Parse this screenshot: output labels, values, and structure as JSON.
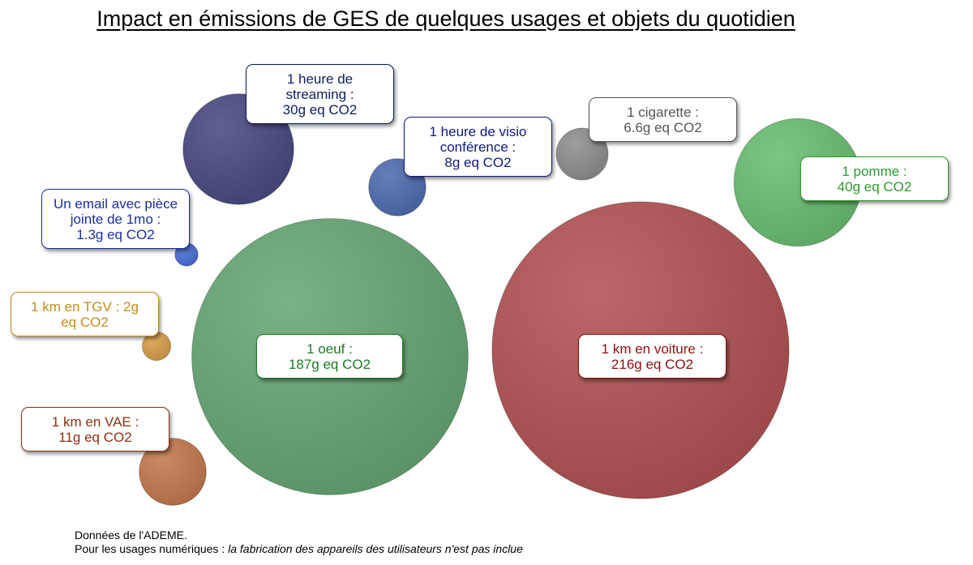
{
  "chart_data": {
    "type": "bubble",
    "title": "Impact en émissions de GES de quelques usages et objets du quotidien",
    "unit": "g eq CO2",
    "items": [
      {
        "id": "streaming",
        "lines": [
          "1 heure de",
          "streaming :",
          "30g eq CO2"
        ],
        "value": 30,
        "color": "#4a4a82",
        "label_color": "#0d1b5e"
      },
      {
        "id": "visio",
        "lines": [
          "1 heure de visio",
          "conférence :",
          "8g eq CO2"
        ],
        "value": 8,
        "color": "#4f6db0",
        "label_color": "#0d1b7e"
      },
      {
        "id": "cigarette",
        "lines": [
          "1 cigarette :",
          "6.6g eq CO2"
        ],
        "value": 6.6,
        "color": "#8f8f8f",
        "label_color": "#555555"
      },
      {
        "id": "pomme",
        "lines": [
          "1 pomme :",
          "40g eq CO2"
        ],
        "value": 40,
        "color": "#6abf72",
        "label_color": "#2e9a32"
      },
      {
        "id": "email",
        "lines": [
          "Un email avec pièce",
          "jointe de 1mo :",
          "1.3g eq CO2"
        ],
        "value": 1.3,
        "color": "#4a6fd8",
        "label_color": "#1a2fa0"
      },
      {
        "id": "tgv",
        "lines": [
          "1 km en TGV : 2g",
          "eq CO2"
        ],
        "value": 2,
        "color": "#d9a04a",
        "label_color": "#c88a1a"
      },
      {
        "id": "vae",
        "lines": [
          "1 km en VAE :",
          "11g eq CO2"
        ],
        "value": 11,
        "color": "#c47a4e",
        "label_color": "#8a3010"
      },
      {
        "id": "oeuf",
        "lines": [
          "1 oeuf :",
          "187g eq CO2"
        ],
        "value": 187,
        "color": "#66a874",
        "label_color": "#1e7a26"
      },
      {
        "id": "voiture",
        "lines": [
          "1 km en voiture :",
          "216g eq CO2"
        ],
        "value": 216,
        "color": "#b35353",
        "label_color": "#8b1010"
      }
    ]
  },
  "footer": {
    "line1": "Données de l'ADEME.",
    "line2_prefix": "Pour les usages numériques : ",
    "line2_italic": "la fabrication des appareils des utilisateurs n'est pas inclue"
  }
}
